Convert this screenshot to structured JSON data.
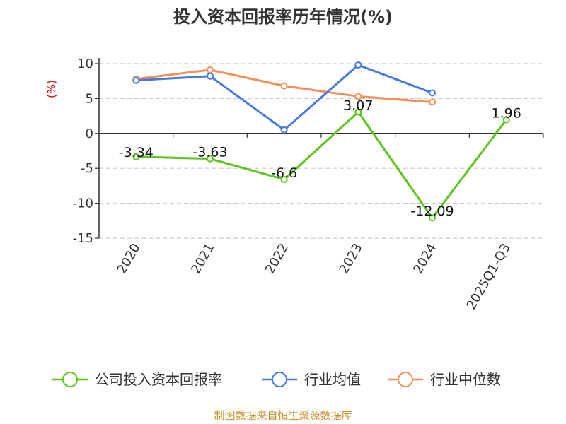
{
  "chart_data": {
    "type": "line",
    "title": "投入资本回报率历年情况(%)",
    "ylabel": "(%)",
    "xlabel": "",
    "categories": [
      "2020",
      "2021",
      "2022",
      "2023",
      "2024",
      "2025Q1-Q3"
    ],
    "ylim": [
      -15,
      10
    ],
    "yticks": [
      10,
      5,
      0,
      -5,
      -10,
      -15
    ],
    "grid": true,
    "legend_position": "bottom",
    "series": [
      {
        "name": "公司投入资本回报率",
        "values": [
          -3.34,
          -3.63,
          -6.6,
          3.07,
          -12.09,
          1.96
        ],
        "labels": [
          "-3.34",
          "-3.63",
          "-6.6",
          "3.07",
          "-12.09",
          "1.96"
        ],
        "color": "#5ec41e"
      },
      {
        "name": "行业均值",
        "values": [
          7.6,
          8.2,
          0.5,
          9.8,
          5.8,
          null
        ],
        "color": "#4a7ad8"
      },
      {
        "name": "行业中位数",
        "values": [
          7.8,
          9.1,
          6.8,
          5.3,
          4.5,
          null
        ],
        "color": "#f58f5a"
      }
    ],
    "source": "制图数据来自恒生聚源数据库",
    "colors": {
      "title": "#333333",
      "unit": "#cc0000",
      "source": "#c8902a",
      "grid": "#cccccc",
      "axis": "#333333"
    }
  }
}
